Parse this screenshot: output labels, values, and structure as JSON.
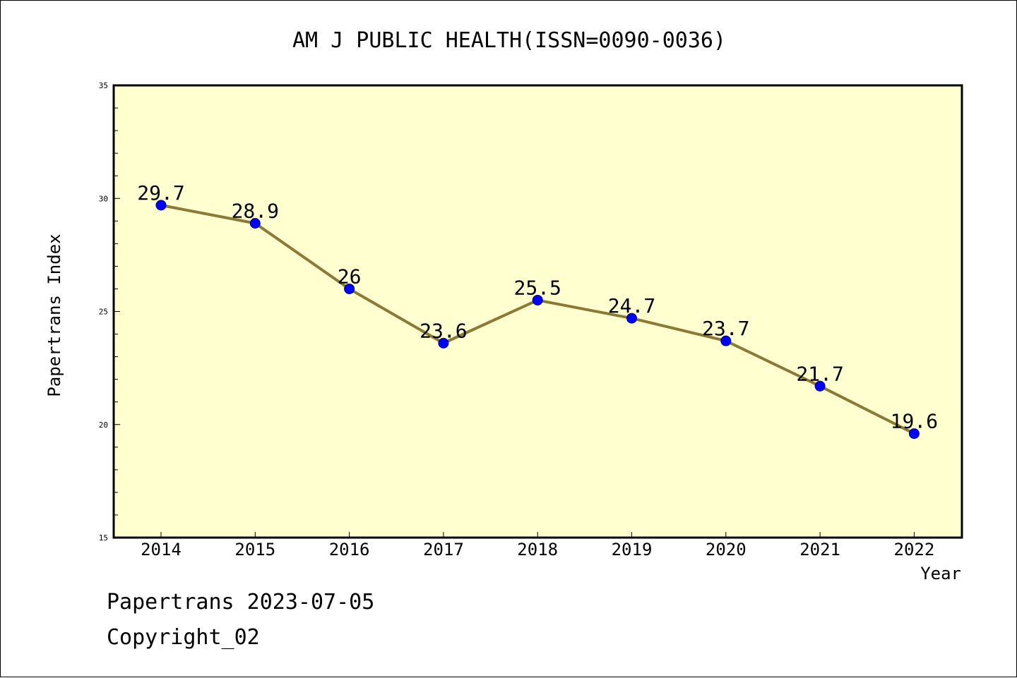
{
  "colors": {
    "plot_background": "#ffffd0",
    "line": "#8b7a35",
    "marker": "#0000ff",
    "axis": "#000000"
  },
  "footer": {
    "generated": "Papertrans 2023-07-05",
    "copyright": "Copyright_02"
  },
  "chart_data": {
    "type": "line",
    "title": "AM J PUBLIC HEALTH(ISSN=0090-0036)",
    "xlabel": "Year",
    "ylabel": "Papertrans Index",
    "categories": [
      "2014",
      "2015",
      "2016",
      "2017",
      "2018",
      "2019",
      "2020",
      "2021",
      "2022"
    ],
    "series": [
      {
        "values": [
          29.7,
          28.9,
          26,
          23.6,
          25.5,
          24.7,
          23.7,
          21.7,
          19.6
        ],
        "data_labels": [
          "29.7",
          "28.9",
          "26",
          "23.6",
          "25.5",
          "24.7",
          "23.7",
          "21.7",
          "19.6"
        ]
      }
    ],
    "ylim": [
      15,
      35
    ],
    "y_major_ticks": [
      15,
      20,
      25,
      30,
      35
    ],
    "y_minor_step": 1,
    "grid": false,
    "legend": "none",
    "marker": "circle"
  }
}
